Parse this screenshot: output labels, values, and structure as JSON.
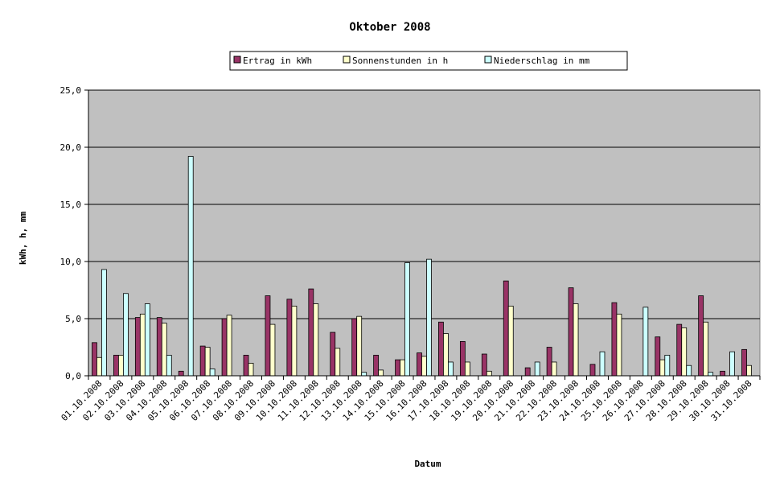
{
  "chart_data": {
    "type": "bar",
    "title": "Oktober 2008",
    "xlabel": "Datum",
    "ylabel": "kWh, h, mm",
    "ylim": [
      0,
      25
    ],
    "yticks": [
      "0,0",
      "5,0",
      "10,0",
      "15,0",
      "20,0",
      "25,0"
    ],
    "ytick_values": [
      0,
      5,
      10,
      15,
      20,
      25
    ],
    "grid": true,
    "legend_position": "top",
    "plot_background": "#c0c0c0",
    "categories": [
      "01.10.2008",
      "02.10.2008",
      "03.10.2008",
      "04.10.2008",
      "05.10.2008",
      "06.10.2008",
      "07.10.2008",
      "08.10.2008",
      "09.10.2008",
      "10.10.2008",
      "11.10.2008",
      "12.10.2008",
      "13.10.2008",
      "14.10.2008",
      "15.10.2008",
      "16.10.2008",
      "17.10.2008",
      "18.10.2008",
      "19.10.2008",
      "20.10.2008",
      "21.10.2008",
      "22.10.2008",
      "23.10.2008",
      "24.10.2008",
      "25.10.2008",
      "26.10.2008",
      "27.10.2008",
      "28.10.2008",
      "29.10.2008",
      "30.10.2008",
      "31.10.2008"
    ],
    "series": [
      {
        "name": "Ertrag in kWh",
        "color": "#993366",
        "values": [
          2.9,
          1.8,
          5.1,
          5.1,
          0.4,
          2.6,
          5.0,
          1.8,
          7.0,
          6.7,
          7.6,
          3.8,
          5.0,
          1.8,
          1.4,
          2.0,
          4.7,
          3.0,
          1.9,
          8.3,
          0.7,
          2.5,
          7.7,
          1.0,
          6.4,
          0.0,
          3.4,
          4.5,
          7.0,
          0.4,
          2.3
        ]
      },
      {
        "name": "Sonnenstunden in h",
        "color": "#ffffcc",
        "values": [
          1.6,
          1.8,
          5.4,
          4.6,
          0.0,
          2.5,
          5.3,
          1.1,
          4.5,
          6.1,
          6.3,
          2.4,
          5.2,
          0.5,
          1.4,
          1.7,
          3.7,
          1.2,
          0.4,
          6.1,
          0.0,
          1.2,
          6.3,
          0.0,
          5.4,
          0.0,
          1.4,
          4.2,
          4.7,
          0.0,
          0.9
        ]
      },
      {
        "name": "Niederschlag in mm",
        "color": "#ccffff",
        "values": [
          9.3,
          7.2,
          6.3,
          1.8,
          19.2,
          0.6,
          0.0,
          0.0,
          0.0,
          0.0,
          0.0,
          0.0,
          0.3,
          0.0,
          9.9,
          10.2,
          1.2,
          0.0,
          0.0,
          0.0,
          1.2,
          0.0,
          0.0,
          2.1,
          0.0,
          6.0,
          1.8,
          0.9,
          0.3,
          2.1,
          0.0
        ]
      }
    ]
  }
}
